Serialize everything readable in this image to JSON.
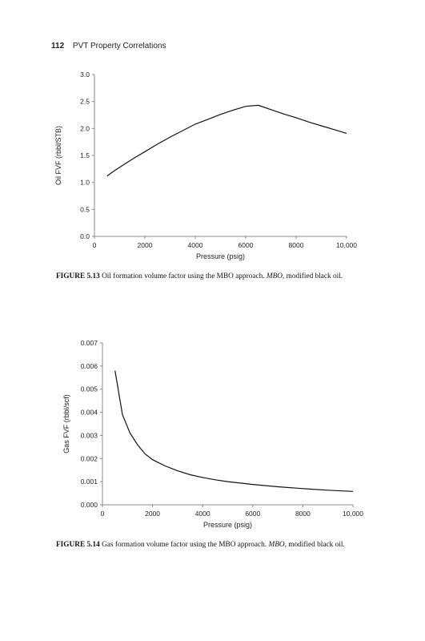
{
  "running_head": {
    "page_number": "112",
    "title": "PVT Property Correlations"
  },
  "captions": [
    {
      "label": "FIGURE 5.13",
      "text_before": "Oil formation volume factor using the MBO approach.",
      "abbr": "MBO,",
      "text_after": "modified black oil."
    },
    {
      "label": "FIGURE 5.14",
      "text_before": "Gas formation volume factor using the MBO approach.",
      "abbr": "MBO,",
      "text_after": "modified black oil."
    }
  ],
  "chart_data": [
    {
      "type": "line",
      "xlabel": "Pressure (psig)",
      "ylabel": "Oil FVF (rbbl/STB)",
      "xlim": [
        0,
        10000
      ],
      "ylim": [
        0,
        3.0
      ],
      "xticks": [
        "0",
        "2000",
        "4000",
        "6000",
        "8000",
        "10,000"
      ],
      "xtick_values": [
        0,
        2000,
        4000,
        6000,
        8000,
        10000
      ],
      "yticks": [
        "0.0",
        "0.5",
        "1.0",
        "1.5",
        "2.0",
        "2.5",
        "3.0"
      ],
      "ytick_values": [
        0,
        0.5,
        1.0,
        1.5,
        2.0,
        2.5,
        3.0
      ],
      "grid": false,
      "series": [
        {
          "x": [
            500,
            800,
            1200,
            1600,
            2000,
            2500,
            3000,
            3500,
            4000,
            4500,
            5000,
            5500,
            6000,
            6500,
            7000,
            7500,
            8000,
            8500,
            9000,
            9500,
            10000
          ],
          "y": [
            1.12,
            1.22,
            1.34,
            1.46,
            1.57,
            1.71,
            1.84,
            1.96,
            2.08,
            2.17,
            2.26,
            2.34,
            2.41,
            2.43,
            2.35,
            2.27,
            2.2,
            2.12,
            2.05,
            1.98,
            1.91
          ]
        }
      ]
    },
    {
      "type": "line",
      "xlabel": "Pressure (psig)",
      "ylabel": "Gas FVF (rbbl/scf)",
      "xlim": [
        0,
        10000
      ],
      "ylim": [
        0,
        0.007
      ],
      "xticks": [
        "0",
        "2000",
        "4000",
        "6000",
        "8000",
        "10,000"
      ],
      "xtick_values": [
        0,
        2000,
        4000,
        6000,
        8000,
        10000
      ],
      "yticks": [
        "0.000",
        "0.001",
        "0.002",
        "0.003",
        "0.004",
        "0.005",
        "0.006",
        "0.007"
      ],
      "ytick_values": [
        0,
        0.001,
        0.002,
        0.003,
        0.004,
        0.005,
        0.006,
        0.007
      ],
      "grid": false,
      "series": [
        {
          "x": [
            500,
            800,
            1100,
            1400,
            1700,
            2000,
            2500,
            3000,
            3500,
            4000,
            4500,
            5000,
            6000,
            7000,
            8000,
            9000,
            10000
          ],
          "y": [
            0.0058,
            0.0039,
            0.0031,
            0.0026,
            0.0022,
            0.00195,
            0.00168,
            0.00147,
            0.0013,
            0.00118,
            0.00108,
            0.001,
            0.00088,
            0.00078,
            0.0007,
            0.00063,
            0.00058
          ]
        }
      ]
    }
  ]
}
